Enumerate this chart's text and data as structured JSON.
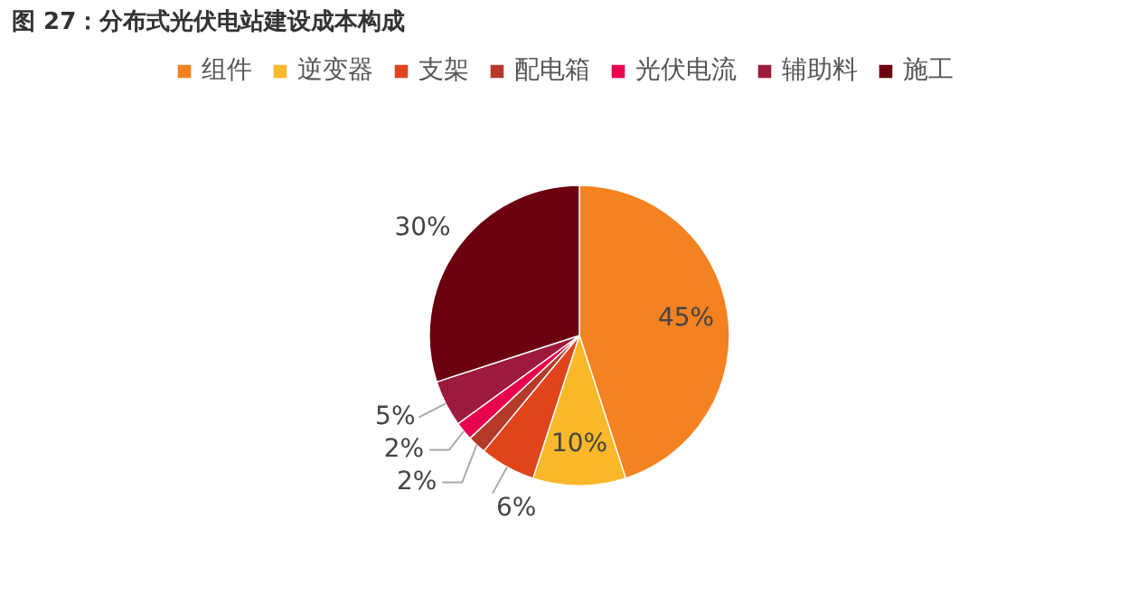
{
  "chart_data": {
    "type": "pie",
    "title": "图 27：分布式光伏电站建设成本构成",
    "categories": [
      "组件",
      "逆变器",
      "支架",
      "配电箱",
      "光伏电流",
      "辅助料",
      "施工"
    ],
    "values": [
      45,
      10,
      6,
      2,
      2,
      5,
      30
    ],
    "colors": [
      "#f58220",
      "#fbb82a",
      "#e0441b",
      "#b43a2a",
      "#e8004e",
      "#9e1a3c",
      "#6b000f"
    ],
    "value_labels": [
      "45%",
      "10%",
      "6%",
      "2%",
      "2%",
      "5%",
      "30%"
    ],
    "legend": "top"
  }
}
